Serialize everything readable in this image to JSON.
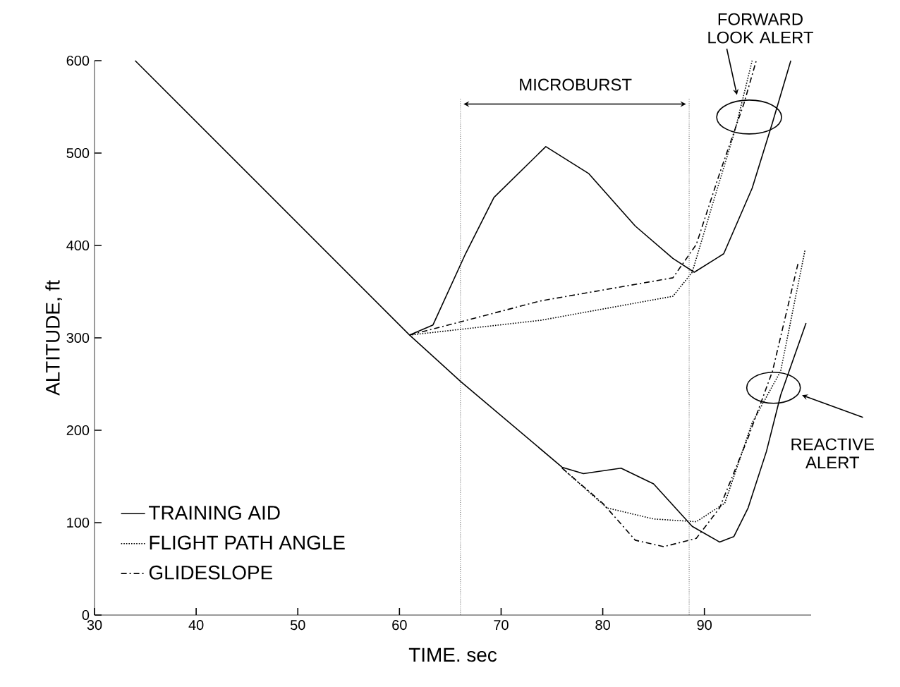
{
  "chart_data": {
    "type": "line",
    "xlabel": "TIME. sec",
    "ylabel": "ALTITUDE, ft",
    "xlim": [
      30,
      100.5
    ],
    "ylim": [
      0,
      600
    ],
    "xticks": [
      30,
      40,
      50,
      60,
      70,
      80,
      90
    ],
    "yticks": [
      0,
      100,
      200,
      300,
      400,
      500,
      600
    ],
    "legend": "bottom left",
    "grid": false,
    "marker": "none",
    "series": [
      {
        "name": "TRAINING AID",
        "color": "#000000",
        "line_style": "solid",
        "x": [
          61,
          63.3,
          66.5,
          69.3,
          74.4,
          78.6,
          83.2,
          86.9,
          89,
          91.9,
          94.7,
          96.7,
          98.5
        ],
        "values": [
          303,
          314,
          391,
          452,
          507,
          478,
          421,
          386,
          371,
          391,
          462,
          533,
          600
        ]
      },
      {
        "name": "FLIGHT PATH ANGLE",
        "color": "#000000",
        "line_style": "dotted",
        "x": [
          61,
          73.9,
          86.9,
          88.8,
          90.6,
          93,
          94.7
        ],
        "values": [
          303,
          319,
          345,
          371,
          437,
          524,
          600
        ]
      },
      {
        "name": "GLIDESLOPE",
        "color": "#000000",
        "line_style": "dashed",
        "x": [
          61,
          73.9,
          86.9,
          89.2,
          91.5,
          93.9,
          95.1
        ],
        "values": [
          303,
          340,
          365,
          401,
          478,
          554,
          600
        ]
      },
      {
        "color": "#000000",
        "line_style": "solid",
        "x": [
          34,
          61,
          66,
          76,
          78.1,
          81.8,
          85,
          88.8,
          91.5,
          92.9,
          94.3,
          96.1,
          97.5,
          100
        ],
        "values": [
          600,
          303,
          253,
          160,
          153,
          159,
          142,
          96,
          79,
          85,
          116,
          177,
          238,
          316
        ]
      },
      {
        "color": "#000000",
        "line_style": "dotted",
        "x": [
          76,
          80.4,
          85,
          89.2,
          92,
          94.7,
          97.5,
          99.9
        ],
        "values": [
          159,
          116,
          104,
          101,
          121,
          208,
          264,
          395
        ]
      },
      {
        "color": "#000000",
        "line_style": "dashed",
        "x": [
          76,
          80,
          83.2,
          86,
          89.2,
          91.5,
          94.3,
          96.7,
          99.2
        ],
        "values": [
          159,
          121,
          81,
          74,
          83,
          116,
          192,
          264,
          380
        ]
      }
    ],
    "ref_lines": [
      {
        "axis": "x",
        "value": 66,
        "line_style": "dotted"
      },
      {
        "axis": "x",
        "value": 88.5,
        "line_style": "dotted"
      }
    ],
    "annotations": [
      "MICROBURST",
      "FORWARD LOOK ALERT",
      "REACTIVE ALERT"
    ]
  }
}
